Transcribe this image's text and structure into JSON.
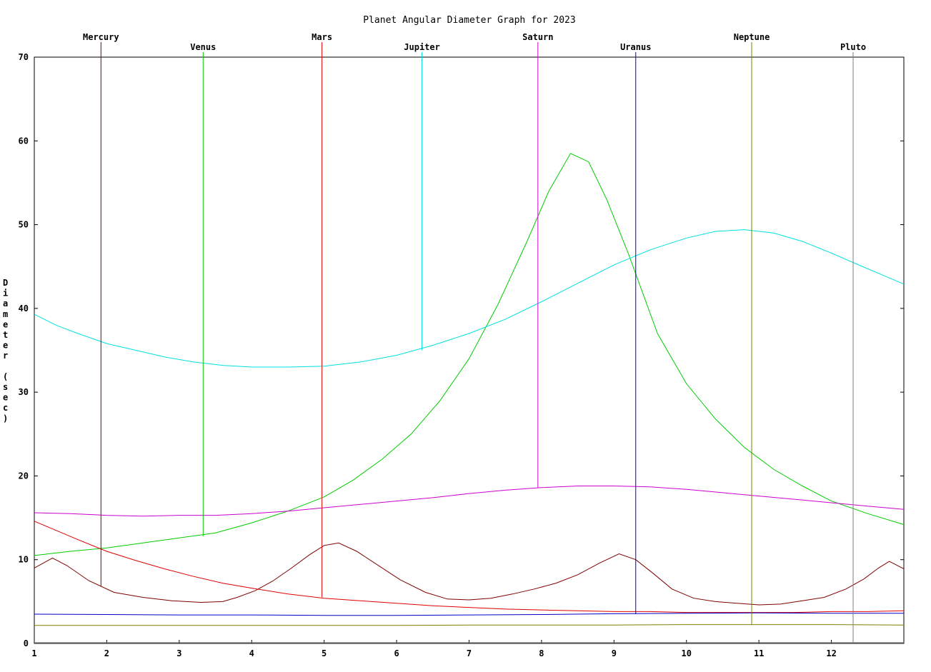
{
  "chart_data": {
    "type": "line",
    "title": "Planet Angular Diameter Graph for 2023",
    "ylabel": "Diameter (sec)",
    "xlabel": "",
    "xlim": [
      1,
      13
    ],
    "ylim": [
      0,
      70
    ],
    "xticks": [
      "1",
      "2",
      "3",
      "4",
      "5",
      "6",
      "7",
      "8",
      "9",
      "10",
      "11",
      "12"
    ],
    "yticks": [
      "0",
      "10",
      "20",
      "30",
      "40",
      "50",
      "60",
      "70"
    ],
    "grid": false,
    "series": [
      {
        "name": "Mercury",
        "color": "#800000",
        "label_x": 1.92,
        "label_y": 6.8,
        "label_row": 0,
        "x": [
          1.0,
          1.25,
          1.45,
          1.75,
          2.1,
          2.5,
          2.9,
          3.3,
          3.6,
          3.8,
          4.05,
          4.3,
          4.55,
          4.8,
          5.0,
          5.2,
          5.45,
          5.75,
          6.05,
          6.4,
          6.7,
          7.0,
          7.3,
          7.6,
          7.9,
          8.2,
          8.5,
          8.8,
          9.07,
          9.3,
          9.55,
          9.8,
          10.1,
          10.4,
          10.7,
          11.0,
          11.3,
          11.6,
          11.9,
          12.2,
          12.45,
          12.65,
          12.8,
          13.0
        ],
        "y": [
          9.0,
          10.2,
          9.3,
          7.5,
          6.1,
          5.5,
          5.1,
          4.9,
          5.0,
          5.5,
          6.3,
          7.5,
          9.0,
          10.6,
          11.7,
          12.0,
          11.0,
          9.3,
          7.6,
          6.1,
          5.3,
          5.2,
          5.4,
          5.9,
          6.5,
          7.2,
          8.2,
          9.6,
          10.7,
          10.0,
          8.3,
          6.5,
          5.4,
          5.0,
          4.8,
          4.6,
          4.7,
          5.1,
          5.5,
          6.5,
          7.7,
          9.0,
          9.8,
          8.9
        ]
      },
      {
        "name": "Venus",
        "color": "#00cc00",
        "label_x": 3.33,
        "label_y": 12.8,
        "label_row": 1,
        "x": [
          1.0,
          1.5,
          2.0,
          2.5,
          3.0,
          3.5,
          4.0,
          4.5,
          5.0,
          5.4,
          5.8,
          6.2,
          6.6,
          7.0,
          7.4,
          7.8,
          8.1,
          8.4,
          8.65,
          8.9,
          9.2,
          9.6,
          10.0,
          10.4,
          10.8,
          11.2,
          11.6,
          12.0,
          12.5,
          13.0
        ],
        "y": [
          10.5,
          11.0,
          11.4,
          12.0,
          12.6,
          13.2,
          14.4,
          15.8,
          17.5,
          19.5,
          22.0,
          25.0,
          29.0,
          34.0,
          40.5,
          48.0,
          54.0,
          58.5,
          57.5,
          53.0,
          46.5,
          37.0,
          31.0,
          26.8,
          23.4,
          20.8,
          18.8,
          17.0,
          15.5,
          14.2
        ]
      },
      {
        "name": "Mars",
        "color": "#e00000",
        "label_x": 4.97,
        "label_y": 5.5,
        "label_row": 0,
        "x": [
          1.0,
          1.3,
          1.6,
          2.0,
          2.4,
          2.8,
          3.2,
          3.6,
          4.0,
          4.5,
          5.0,
          5.5,
          6.0,
          6.5,
          7.0,
          7.5,
          8.0,
          8.5,
          9.0,
          9.5,
          10.0,
          10.5,
          11.0,
          11.5,
          12.0,
          12.5,
          13.0
        ],
        "y": [
          14.6,
          13.5,
          12.4,
          11.0,
          9.9,
          8.9,
          8.0,
          7.2,
          6.6,
          5.9,
          5.4,
          5.1,
          4.8,
          4.5,
          4.3,
          4.1,
          4.0,
          3.9,
          3.8,
          3.8,
          3.7,
          3.7,
          3.7,
          3.7,
          3.8,
          3.8,
          3.9
        ]
      },
      {
        "name": "Jupiter",
        "color": "#00e0e0",
        "label_x": 6.35,
        "label_y": 35.0,
        "label_row": 1,
        "x": [
          1.0,
          1.3,
          1.6,
          2.0,
          2.4,
          2.8,
          3.2,
          3.6,
          4.0,
          4.5,
          5.0,
          5.5,
          6.0,
          6.5,
          7.0,
          7.5,
          8.0,
          8.5,
          9.0,
          9.5,
          10.0,
          10.4,
          10.8,
          11.2,
          11.6,
          12.0,
          12.4,
          12.7,
          13.0
        ],
        "y": [
          39.3,
          38.0,
          37.0,
          35.8,
          35.0,
          34.2,
          33.6,
          33.2,
          33.0,
          33.0,
          33.1,
          33.6,
          34.4,
          35.6,
          37.0,
          38.7,
          40.8,
          43.0,
          45.2,
          47.0,
          48.4,
          49.2,
          49.4,
          49.0,
          48.0,
          46.6,
          45.1,
          44.0,
          42.9
        ]
      },
      {
        "name": "Saturn",
        "color": "#cc00cc",
        "label_x": 7.95,
        "label_y": 18.6,
        "label_row": 0,
        "x": [
          1.0,
          1.5,
          2.0,
          2.5,
          3.0,
          3.5,
          4.0,
          4.5,
          5.0,
          5.5,
          6.0,
          6.5,
          7.0,
          7.5,
          8.0,
          8.5,
          9.0,
          9.5,
          10.0,
          10.5,
          11.0,
          11.5,
          12.0,
          12.5,
          13.0
        ],
        "y": [
          15.6,
          15.5,
          15.3,
          15.2,
          15.3,
          15.3,
          15.5,
          15.8,
          16.2,
          16.6,
          17.0,
          17.4,
          17.9,
          18.3,
          18.6,
          18.8,
          18.8,
          18.7,
          18.4,
          18.0,
          17.6,
          17.2,
          16.8,
          16.4,
          16.0
        ]
      },
      {
        "name": "Uranus",
        "color": "#0000cc",
        "label_x": 9.3,
        "label_y": 3.5,
        "label_row": 1,
        "x": [
          1.0,
          2.0,
          3.0,
          4.0,
          5.0,
          6.0,
          7.0,
          8.0,
          9.0,
          10.0,
          11.0,
          12.0,
          13.0
        ],
        "y": [
          3.5,
          3.45,
          3.4,
          3.4,
          3.35,
          3.35,
          3.4,
          3.45,
          3.55,
          3.6,
          3.65,
          3.6,
          3.6
        ]
      },
      {
        "name": "Neptune",
        "color": "#808000",
        "label_x": 10.9,
        "label_y": 2.2,
        "label_row": 0,
        "x": [
          1.0,
          2.0,
          3.0,
          4.0,
          5.0,
          6.0,
          7.0,
          8.0,
          9.0,
          10.0,
          11.0,
          12.0,
          13.0
        ],
        "y": [
          2.15,
          2.15,
          2.15,
          2.15,
          2.15,
          2.15,
          2.2,
          2.2,
          2.2,
          2.25,
          2.25,
          2.25,
          2.2
        ]
      },
      {
        "name": "Pluto",
        "color": "#808080",
        "label_x": 12.3,
        "label_y": 0.1,
        "label_row": 1,
        "x": [
          1.0,
          4.0,
          7.0,
          10.0,
          13.0
        ],
        "y": [
          0.1,
          0.1,
          0.1,
          0.1,
          0.1
        ]
      }
    ]
  }
}
